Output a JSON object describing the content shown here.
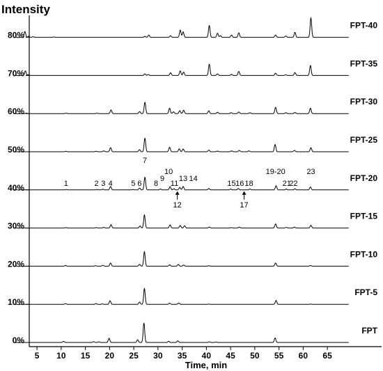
{
  "chart_data": {
    "type": "line",
    "title": "",
    "ylabel_corner": "Intensity",
    "xlabel": "Time, min",
    "xlim": [
      0,
      70
    ],
    "x_ticks": [
      5,
      10,
      15,
      20,
      25,
      30,
      35,
      40,
      45,
      50,
      55,
      60,
      65
    ],
    "y_ticks": [
      "0%",
      "10%",
      "20%",
      "30%",
      "40%",
      "50%",
      "60%",
      "70%",
      "80%"
    ],
    "grid": false,
    "series": [
      {
        "name": "FPT",
        "peaks": [
          [
            10.5,
            0.25
          ],
          [
            16.7,
            0.2
          ],
          [
            17.8,
            0.15
          ],
          [
            19.9,
            0.95
          ],
          [
            25.8,
            0.6
          ],
          [
            27.1,
            4.3
          ],
          [
            32.2,
            0.25
          ],
          [
            34.1,
            0.35
          ],
          [
            40.6,
            0.15
          ],
          [
            42.0,
            0.1
          ],
          [
            54.2,
            1.0
          ]
        ]
      },
      {
        "name": "FPT-5",
        "peaks": [
          [
            10.9,
            0.15
          ],
          [
            17.2,
            0.15
          ],
          [
            18.5,
            0.1
          ],
          [
            20.1,
            0.8
          ],
          [
            26.2,
            0.5
          ],
          [
            27.2,
            3.5
          ],
          [
            32.4,
            0.25
          ],
          [
            34.3,
            0.3
          ],
          [
            40.5,
            0.05
          ],
          [
            54.4,
            0.85
          ],
          [
            61.5,
            0.05
          ]
        ]
      },
      {
        "name": "FPT-10",
        "peaks": [
          [
            10.9,
            0.15
          ],
          [
            17.1,
            0.1
          ],
          [
            18.6,
            0.2
          ],
          [
            20.2,
            0.7
          ],
          [
            26.2,
            0.4
          ],
          [
            27.2,
            3.2
          ],
          [
            32.4,
            0.3
          ],
          [
            34.2,
            0.4
          ],
          [
            35.3,
            0.25
          ],
          [
            40.5,
            0.1
          ],
          [
            54.3,
            0.7
          ],
          [
            61.5,
            0.15
          ]
        ]
      },
      {
        "name": "FPT-15",
        "peaks": [
          [
            11.0,
            0.1
          ],
          [
            17.3,
            0.1
          ],
          [
            18.8,
            0.15
          ],
          [
            20.3,
            0.75
          ],
          [
            26.3,
            0.45
          ],
          [
            27.2,
            2.9
          ],
          [
            32.5,
            0.7
          ],
          [
            34.6,
            0.55
          ],
          [
            35.5,
            0.5
          ],
          [
            40.6,
            0.2
          ],
          [
            45.2,
            0.1
          ],
          [
            46.8,
            0.2
          ],
          [
            54.3,
            0.9
          ],
          [
            56.5,
            0.15
          ],
          [
            58.2,
            0.2
          ],
          [
            61.6,
            0.6
          ]
        ]
      },
      {
        "name": "FPT-20",
        "peaks": [
          [
            11.1,
            0.1
          ],
          [
            17.4,
            0.1
          ],
          [
            18.6,
            0.15
          ],
          [
            20.2,
            0.75
          ],
          [
            24.8,
            0.1
          ],
          [
            26.2,
            0.4
          ],
          [
            27.3,
            2.8
          ],
          [
            30.5,
            0.2
          ],
          [
            32.5,
            0.7
          ],
          [
            33.3,
            0.25
          ],
          [
            34.5,
            0.55
          ],
          [
            35.2,
            0.75
          ],
          [
            40.5,
            0.3
          ],
          [
            45.0,
            0.2
          ],
          [
            46.6,
            0.3
          ],
          [
            49.0,
            0.2
          ],
          [
            54.4,
            0.9
          ],
          [
            56.5,
            0.2
          ],
          [
            58.3,
            0.25
          ],
          [
            61.5,
            0.65
          ]
        ]
      },
      {
        "name": "FPT-25",
        "peaks": [
          [
            11.0,
            0.1
          ],
          [
            17.2,
            0.1
          ],
          [
            18.8,
            0.2
          ],
          [
            20.2,
            0.9
          ],
          [
            26.2,
            0.45
          ],
          [
            27.3,
            3.0
          ],
          [
            32.4,
            1.0
          ],
          [
            34.4,
            0.65
          ],
          [
            35.2,
            0.6
          ],
          [
            40.5,
            0.35
          ],
          [
            42.3,
            0.15
          ],
          [
            45.2,
            0.2
          ],
          [
            46.8,
            0.3
          ],
          [
            48.8,
            0.2
          ],
          [
            54.2,
            1.6
          ],
          [
            58.2,
            0.3
          ],
          [
            61.6,
            0.9
          ]
        ]
      },
      {
        "name": "FPT-30",
        "peaks": [
          [
            2.8,
            0.1
          ],
          [
            11.0,
            0.1
          ],
          [
            17.4,
            0.1
          ],
          [
            20.3,
            0.8
          ],
          [
            26.2,
            0.45
          ],
          [
            27.3,
            2.5
          ],
          [
            32.4,
            1.2
          ],
          [
            33.2,
            0.4
          ],
          [
            34.5,
            0.65
          ],
          [
            35.3,
            0.75
          ],
          [
            40.5,
            0.6
          ],
          [
            42.3,
            0.3
          ],
          [
            45.1,
            0.2
          ],
          [
            46.7,
            0.35
          ],
          [
            49.0,
            0.2
          ],
          [
            54.3,
            1.4
          ],
          [
            56.4,
            0.2
          ],
          [
            58.3,
            0.25
          ],
          [
            61.5,
            1.2
          ]
        ]
      },
      {
        "name": "FPT-35",
        "peaks": [
          [
            2.6,
            1.0
          ],
          [
            3.2,
            0.15
          ],
          [
            27.3,
            0.35
          ],
          [
            28.0,
            0.2
          ],
          [
            32.6,
            0.6
          ],
          [
            34.6,
            1.0
          ],
          [
            35.3,
            0.75
          ],
          [
            40.6,
            2.5
          ],
          [
            42.3,
            0.35
          ],
          [
            45.2,
            0.25
          ],
          [
            46.7,
            0.9
          ],
          [
            54.3,
            0.5
          ],
          [
            56.4,
            0.15
          ],
          [
            58.3,
            0.65
          ],
          [
            61.5,
            2.2
          ]
        ]
      },
      {
        "name": "FPT-40",
        "peaks": [
          [
            2.5,
            1.3
          ],
          [
            3.3,
            0.25
          ],
          [
            4.2,
            0.15
          ],
          [
            8.5,
            0.1
          ],
          [
            27.3,
            0.2
          ],
          [
            28.1,
            0.5
          ],
          [
            32.6,
            0.35
          ],
          [
            34.6,
            1.6
          ],
          [
            35.2,
            1.2
          ],
          [
            40.6,
            2.6
          ],
          [
            42.3,
            0.9
          ],
          [
            42.9,
            0.35
          ],
          [
            45.2,
            0.5
          ],
          [
            46.7,
            1.0
          ],
          [
            54.3,
            0.5
          ],
          [
            56.4,
            0.3
          ],
          [
            58.3,
            1.1
          ],
          [
            61.6,
            4.3
          ]
        ]
      }
    ],
    "peak_labels": [
      {
        "text": "1",
        "x": 11.0,
        "pos": "above"
      },
      {
        "text": "2",
        "x": 17.3,
        "pos": "above"
      },
      {
        "text": "3",
        "x": 18.7,
        "pos": "above"
      },
      {
        "text": "4",
        "x": 20.2,
        "pos": "above"
      },
      {
        "text": "5",
        "x": 24.9,
        "pos": "above"
      },
      {
        "text": "6",
        "x": 26.2,
        "pos": "above"
      },
      {
        "text": "7",
        "x": 27.3,
        "pos": "top"
      },
      {
        "text": "8",
        "x": 29.6,
        "pos": "above"
      },
      {
        "text": "9",
        "x": 30.9,
        "pos": "above-high"
      },
      {
        "text": "10",
        "x": 32.2,
        "pos": "high"
      },
      {
        "text": "11",
        "x": 33.4,
        "pos": "above"
      },
      {
        "text": "12",
        "x": 34.0,
        "pos": "arrow-below"
      },
      {
        "text": "13",
        "x": 35.2,
        "pos": "above-high"
      },
      {
        "text": "14",
        "x": 37.3,
        "pos": "above-mid"
      },
      {
        "text": "15",
        "x": 45.2,
        "pos": "above"
      },
      {
        "text": "16",
        "x": 46.9,
        "pos": "above"
      },
      {
        "text": "17",
        "x": 47.8,
        "pos": "arrow-below"
      },
      {
        "text": "18",
        "x": 48.8,
        "pos": "above"
      },
      {
        "text": "19-20",
        "x": 54.3,
        "pos": "high"
      },
      {
        "text": "21",
        "x": 56.6,
        "pos": "above"
      },
      {
        "text": "22",
        "x": 58.0,
        "pos": "above"
      },
      {
        "text": "23",
        "x": 61.6,
        "pos": "high"
      }
    ]
  }
}
